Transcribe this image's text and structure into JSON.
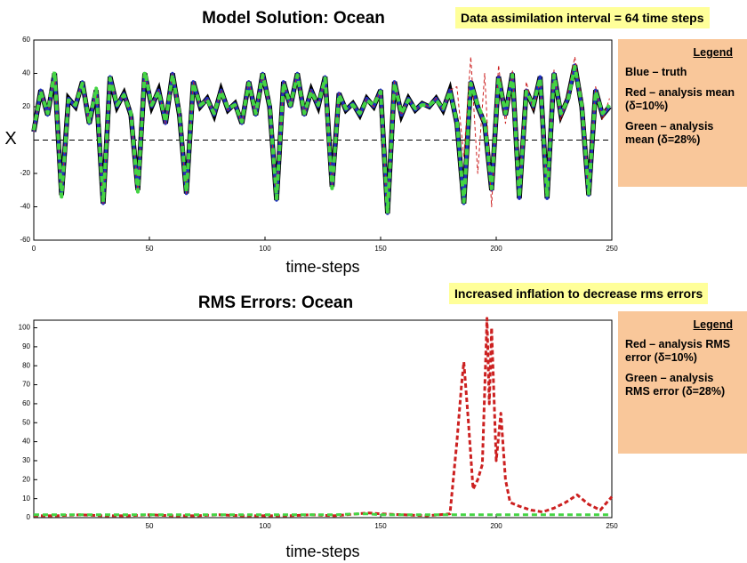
{
  "chart_data": [
    {
      "type": "line",
      "title": "Model Solution: Ocean",
      "annotation": "Data assimilation interval = 64 time steps",
      "xlabel": "time-steps",
      "ylabel": "X",
      "legend_title": "Legend",
      "xlim": [
        0,
        250
      ],
      "xticks": [
        0,
        50,
        100,
        150,
        200,
        250
      ],
      "ylim": [
        -60,
        60
      ],
      "yticks": [
        -60,
        -40,
        -20,
        20,
        40,
        60
      ],
      "hline": 0,
      "x": [
        0,
        3,
        6,
        9,
        12,
        15,
        18,
        21,
        24,
        27,
        30,
        33,
        36,
        39,
        42,
        45,
        48,
        51,
        54,
        57,
        60,
        63,
        66,
        69,
        72,
        75,
        78,
        81,
        84,
        87,
        90,
        93,
        96,
        99,
        102,
        105,
        108,
        111,
        114,
        117,
        120,
        123,
        126,
        129,
        132,
        135,
        138,
        141,
        144,
        147,
        150,
        153,
        156,
        159,
        162,
        165,
        168,
        171,
        174,
        177,
        180,
        183,
        186,
        189,
        192,
        195,
        198,
        201,
        204,
        207,
        210,
        213,
        216,
        219,
        222,
        225,
        228,
        231,
        234,
        237,
        240,
        243,
        246,
        249
      ],
      "series": [
        {
          "name": "Blue – truth",
          "color": "#1f2fbf",
          "values": [
            5,
            30,
            15,
            40,
            -33,
            25,
            20,
            35,
            10,
            30,
            -38,
            38,
            20,
            28,
            15,
            -30,
            40,
            20,
            30,
            10,
            40,
            15,
            -32,
            35,
            20,
            25,
            15,
            30,
            18,
            22,
            10,
            35,
            15,
            40,
            20,
            -36,
            35,
            20,
            40,
            15,
            30,
            20,
            38,
            -28,
            28,
            18,
            22,
            15,
            25,
            20,
            30,
            -44,
            35,
            15,
            25,
            18,
            22,
            20,
            25,
            18,
            30,
            10,
            -38,
            35,
            20,
            10,
            -30,
            38,
            15,
            40,
            -35,
            30,
            20,
            38,
            -35,
            40,
            15,
            25,
            45,
            20,
            -33,
            30,
            15,
            20
          ]
        },
        {
          "name": "Red – analysis mean (δ=10%)",
          "color": "#cc2020",
          "values": [
            5,
            30,
            15,
            40,
            -33,
            25,
            20,
            35,
            10,
            30,
            -38,
            38,
            20,
            28,
            15,
            -30,
            40,
            20,
            30,
            10,
            40,
            15,
            -32,
            35,
            20,
            25,
            15,
            30,
            18,
            22,
            10,
            35,
            15,
            40,
            20,
            -36,
            35,
            20,
            40,
            15,
            30,
            20,
            38,
            -28,
            28,
            18,
            22,
            15,
            25,
            20,
            30,
            -44,
            35,
            15,
            25,
            18,
            22,
            20,
            25,
            18,
            30,
            32,
            -10,
            50,
            -20,
            40,
            -40,
            45,
            10,
            42,
            -30,
            35,
            18,
            36,
            -32,
            42,
            12,
            28,
            50,
            22,
            -30,
            32,
            12,
            25
          ]
        },
        {
          "name": "Green – analysis mean (δ=28%)",
          "color": "#44d444",
          "values": [
            6,
            29,
            16,
            41,
            -34,
            24,
            21,
            34,
            11,
            31,
            -37,
            37,
            21,
            27,
            16,
            -31,
            41,
            21,
            29,
            11,
            39,
            16,
            -31,
            34,
            21,
            24,
            16,
            29,
            19,
            21,
            11,
            34,
            16,
            39,
            21,
            -35,
            34,
            21,
            39,
            16,
            29,
            21,
            37,
            -29,
            27,
            19,
            21,
            16,
            24,
            21,
            29,
            -43,
            34,
            16,
            24,
            19,
            21,
            21,
            24,
            19,
            29,
            11,
            -37,
            34,
            21,
            11,
            -29,
            37,
            16,
            39,
            -34,
            29,
            21,
            37,
            -34,
            39,
            16,
            24,
            44,
            21,
            -32,
            29,
            16,
            21
          ]
        }
      ]
    },
    {
      "type": "line",
      "title": "RMS Errors: Ocean",
      "annotation": "Increased inflation to decrease rms errors",
      "xlabel": "time-steps",
      "legend_title": "Legend",
      "xlim": [
        0,
        250
      ],
      "xticks": [
        50,
        100,
        150,
        200,
        250
      ],
      "ylim": [
        0,
        104
      ],
      "yticks": [
        0,
        10,
        20,
        30,
        40,
        50,
        60,
        70,
        80,
        90,
        100
      ],
      "x": [
        0,
        10,
        20,
        30,
        40,
        50,
        60,
        70,
        80,
        90,
        100,
        110,
        120,
        130,
        140,
        145,
        150,
        160,
        170,
        180,
        183,
        185,
        186,
        188,
        190,
        192,
        194,
        196,
        197,
        198,
        200,
        202,
        204,
        206,
        210,
        215,
        220,
        225,
        230,
        235,
        240,
        245,
        250
      ],
      "series": [
        {
          "name": "Red – analysis RMS error (δ=10%)",
          "color": "#cc2020",
          "values": [
            1,
            1,
            1.5,
            1,
            1,
            1.5,
            1,
            1,
            1.5,
            1,
            1,
            1,
            1.5,
            1,
            2,
            2.5,
            2,
            1.5,
            1,
            2,
            40,
            70,
            82,
            50,
            15,
            20,
            28,
            105,
            60,
            100,
            30,
            55,
            20,
            8,
            6,
            4,
            3,
            5,
            8,
            12,
            7,
            4,
            11
          ]
        },
        {
          "name": "Green – analysis RMS error (δ=28%)",
          "color": "#44d444",
          "values": [
            1.5,
            1.5,
            1.5,
            1.5,
            1.5,
            1.5,
            1.5,
            1.5,
            1.5,
            1.5,
            1.5,
            1.5,
            1.5,
            1.5,
            2,
            2,
            1.5,
            1.5,
            1.5,
            1.5,
            1.5,
            1.5,
            1.5,
            1.5,
            1.5,
            1.5,
            1.5,
            1.5,
            1.5,
            1.5,
            1.5,
            1.5,
            1.5,
            1.5,
            1.5,
            1.5,
            1.5,
            1.5,
            1.5,
            1.5,
            1.5,
            1.5,
            1.5
          ]
        }
      ]
    }
  ]
}
